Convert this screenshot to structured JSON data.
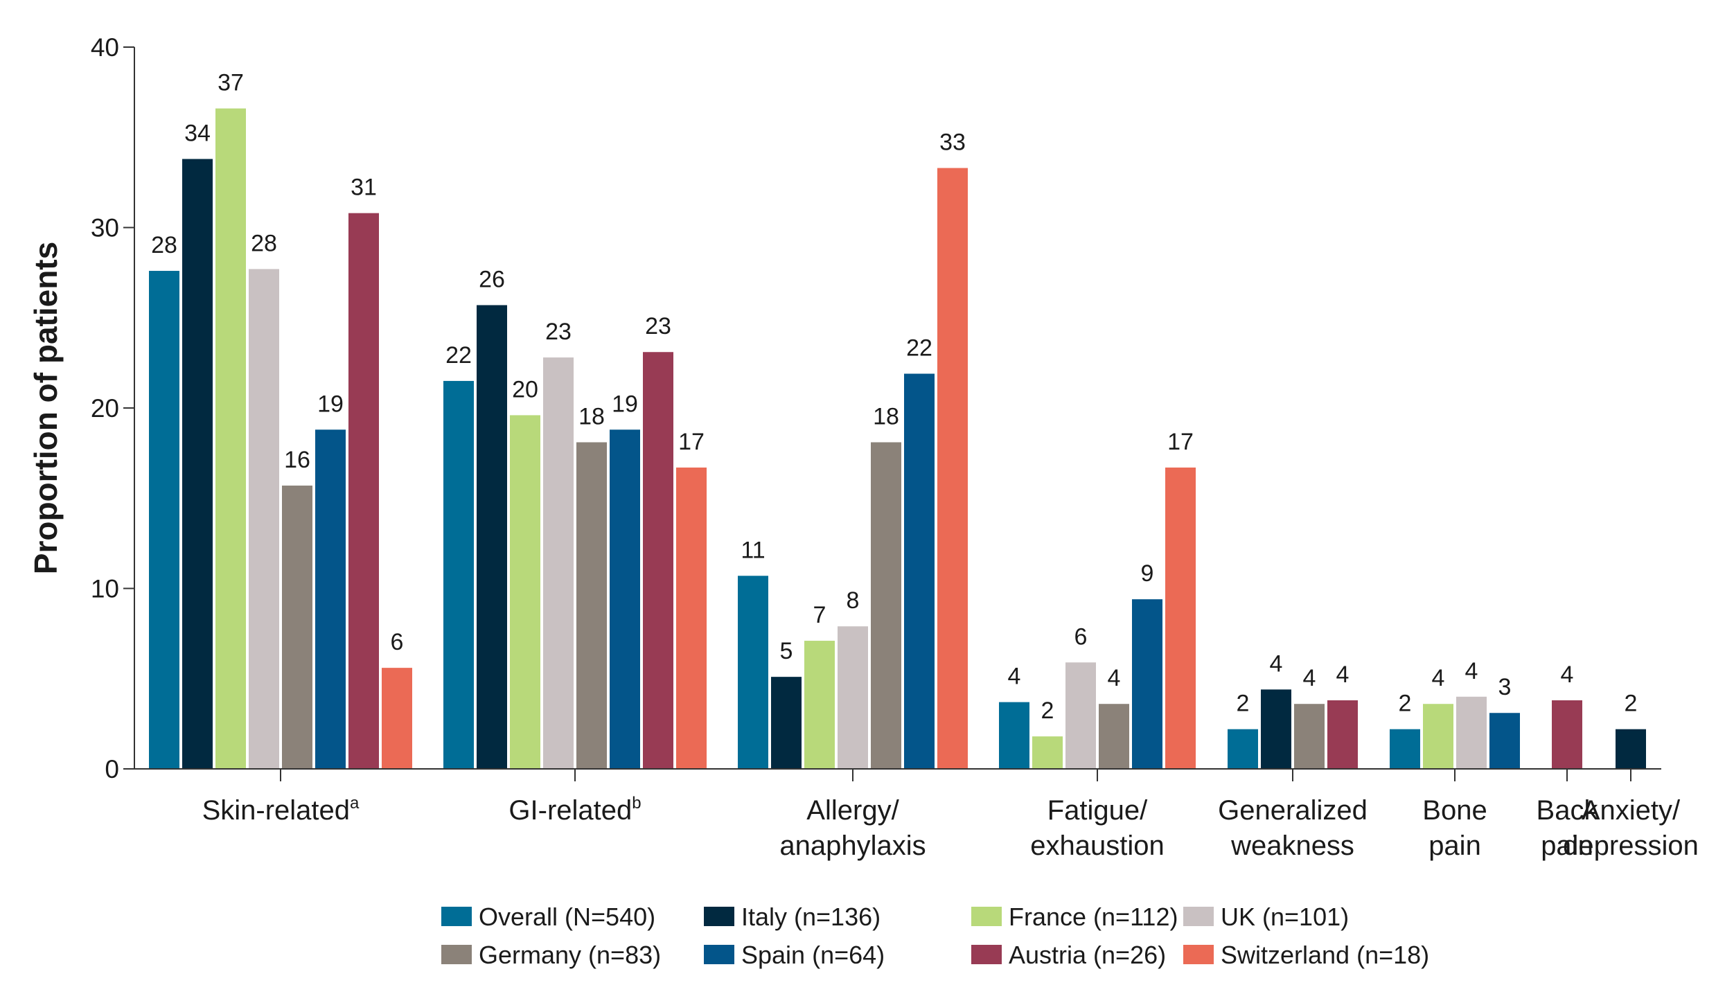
{
  "chart_data": {
    "type": "bar",
    "ylabel": "Proportion of patients",
    "ylim": [
      0,
      40
    ],
    "yticks": [
      0,
      10,
      20,
      30,
      40
    ],
    "grid": false,
    "legend_position": "bottom",
    "categories": [
      {
        "lines": [
          "Skin-related"
        ],
        "superscript": "a"
      },
      {
        "lines": [
          "GI-related"
        ],
        "superscript": "b"
      },
      {
        "lines": [
          "Allergy/",
          "anaphylaxis"
        ]
      },
      {
        "lines": [
          "Fatigue/",
          "exhaustion"
        ]
      },
      {
        "lines": [
          "Generalized",
          "weakness"
        ]
      },
      {
        "lines": [
          "Bone",
          "pain"
        ]
      },
      {
        "lines": [
          "Back",
          "pain"
        ]
      },
      {
        "lines": [
          "Anxiety/",
          "depression"
        ]
      }
    ],
    "series": [
      {
        "name": "Overall (N=540)",
        "color": "#006d96",
        "values": [
          27.6,
          21.5,
          10.7,
          3.7,
          2.2,
          2.2,
          null,
          null
        ],
        "labels": [
          "28",
          "22",
          "11",
          "4",
          "2",
          "2",
          null,
          null
        ]
      },
      {
        "name": "Italy (n=136)",
        "color": "#012940",
        "values": [
          33.8,
          25.7,
          5.1,
          null,
          4.4,
          null,
          null,
          2.2
        ],
        "labels": [
          "34",
          "26",
          "5",
          null,
          "4",
          null,
          null,
          "2"
        ]
      },
      {
        "name": "France (n=112)",
        "color": "#b8d97a",
        "values": [
          36.6,
          19.6,
          7.1,
          1.8,
          null,
          3.6,
          null,
          null
        ],
        "labels": [
          "37",
          "20",
          "7",
          "2",
          null,
          "4",
          null,
          null
        ]
      },
      {
        "name": "UK (n=101)",
        "color": "#c9c1c2",
        "values": [
          27.7,
          22.8,
          7.9,
          5.9,
          null,
          4.0,
          null,
          null
        ],
        "labels": [
          "28",
          "23",
          "8",
          "6",
          null,
          "4",
          null,
          null
        ]
      },
      {
        "name": "Germany (n=83)",
        "color": "#8b8279",
        "values": [
          15.7,
          18.1,
          18.1,
          3.6,
          3.6,
          null,
          null,
          null
        ],
        "labels": [
          "16",
          "18",
          "18",
          "4",
          "4",
          null,
          null,
          null
        ]
      },
      {
        "name": "Spain (n=64)",
        "color": "#03558a",
        "values": [
          18.8,
          18.8,
          21.9,
          9.4,
          null,
          3.1,
          null,
          null
        ],
        "labels": [
          "19",
          "19",
          "22",
          "9",
          null,
          "3",
          null,
          null
        ]
      },
      {
        "name": "Austria (n=26)",
        "color": "#983b54",
        "values": [
          30.8,
          23.1,
          null,
          null,
          3.8,
          null,
          3.8,
          null
        ],
        "labels": [
          "31",
          "23",
          null,
          null,
          "4",
          null,
          "4",
          null
        ]
      },
      {
        "name": "Switzerland (n=18)",
        "color": "#eb6a55",
        "values": [
          5.6,
          16.7,
          33.3,
          16.7,
          null,
          null,
          null,
          null
        ],
        "labels": [
          "6",
          "17",
          "33",
          "17",
          null,
          null,
          null,
          null
        ]
      }
    ]
  }
}
